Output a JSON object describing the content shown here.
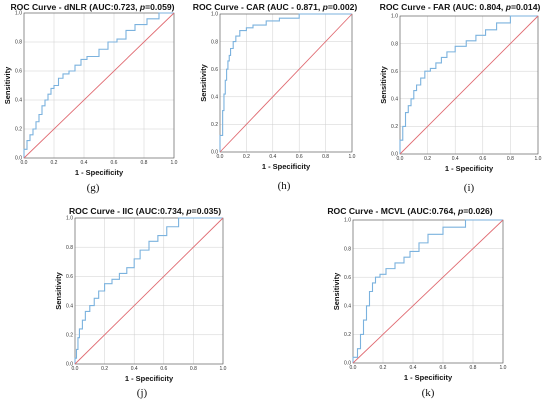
{
  "colors": {
    "roc": "#7bb2de",
    "diagonal": "#e06b72",
    "grid": "#cfcfcf",
    "frame": "#555555"
  },
  "chart_data": [
    {
      "type": "line",
      "title": "ROC Curve - dNLR (AUC:0.723, p=0.059)",
      "title_prefix": "ROC Curve - dNLR (AUC:0.723, ",
      "title_p": "p",
      "title_suffix": "=0.059)",
      "xlabel": "1 - Specificity",
      "ylabel": "Sensitivity",
      "xlim": [
        0,
        1
      ],
      "ylim": [
        0,
        1
      ],
      "xticks": [
        "0.0",
        "0.2",
        "0.4",
        "0.6",
        "0.8",
        "1.0"
      ],
      "yticks": [
        "0.0",
        "0.2",
        "0.4",
        "0.6",
        "0.8",
        "1.0"
      ],
      "grid": true,
      "letter": "(g)",
      "series": [
        {
          "x": [
            0,
            0,
            0.02,
            0.02,
            0.04,
            0.04,
            0.06,
            0.06,
            0.08,
            0.08,
            0.1,
            0.1,
            0.12,
            0.12,
            0.14,
            0.14,
            0.16,
            0.16,
            0.18,
            0.18,
            0.2,
            0.2,
            0.23,
            0.23,
            0.26,
            0.26,
            0.3,
            0.3,
            0.34,
            0.34,
            0.38,
            0.38,
            0.42,
            0.42,
            0.5,
            0.5,
            0.56,
            0.56,
            0.62,
            0.62,
            0.68,
            0.68,
            0.74,
            0.74,
            0.82,
            0.82,
            0.9,
            0.9,
            1.0
          ],
          "y": [
            0,
            0.06,
            0.06,
            0.12,
            0.12,
            0.16,
            0.16,
            0.2,
            0.2,
            0.25,
            0.25,
            0.3,
            0.3,
            0.36,
            0.36,
            0.4,
            0.4,
            0.44,
            0.44,
            0.48,
            0.48,
            0.5,
            0.5,
            0.55,
            0.55,
            0.58,
            0.58,
            0.6,
            0.6,
            0.64,
            0.64,
            0.68,
            0.68,
            0.7,
            0.7,
            0.75,
            0.75,
            0.8,
            0.8,
            0.82,
            0.82,
            0.88,
            0.88,
            0.92,
            0.92,
            0.96,
            0.96,
            1.0,
            1.0
          ]
        },
        {
          "x": [
            0,
            1
          ],
          "y": [
            0,
            1
          ]
        }
      ]
    },
    {
      "type": "line",
      "title": "ROC Curve - CAR (AUC - 0.871, p=0.002)",
      "title_prefix": "ROC Curve - CAR (AUC - 0.871, ",
      "title_p": "p",
      "title_suffix": "=0.002)",
      "xlabel": "1 - Specificity",
      "ylabel": "Sensitivity",
      "xlim": [
        0,
        1
      ],
      "ylim": [
        0,
        1
      ],
      "xticks": [
        "0.0",
        "0.2",
        "0.4",
        "0.6",
        "0.8",
        "1.0"
      ],
      "yticks": [
        "0.0",
        "0.2",
        "0.4",
        "0.6",
        "0.8",
        "1.0"
      ],
      "grid": true,
      "letter": "(h)",
      "series": [
        {
          "x": [
            0,
            0,
            0.02,
            0.02,
            0.03,
            0.03,
            0.04,
            0.04,
            0.05,
            0.05,
            0.06,
            0.06,
            0.07,
            0.07,
            0.08,
            0.08,
            0.1,
            0.1,
            0.12,
            0.12,
            0.15,
            0.15,
            0.2,
            0.2,
            0.25,
            0.25,
            0.35,
            0.35,
            0.45,
            0.45,
            0.6,
            0.6,
            1.0
          ],
          "y": [
            0,
            0.12,
            0.12,
            0.3,
            0.3,
            0.42,
            0.42,
            0.52,
            0.52,
            0.6,
            0.6,
            0.66,
            0.66,
            0.7,
            0.7,
            0.75,
            0.75,
            0.8,
            0.8,
            0.84,
            0.84,
            0.88,
            0.88,
            0.9,
            0.9,
            0.92,
            0.92,
            0.95,
            0.95,
            0.97,
            0.97,
            1.0,
            1.0
          ]
        },
        {
          "x": [
            0,
            1
          ],
          "y": [
            0,
            1
          ]
        }
      ]
    },
    {
      "type": "line",
      "title": "ROC Curve - FAR (AUC: 0.804, p=0.014)",
      "title_prefix": "ROC Curve - FAR (AUC: 0.804, ",
      "title_p": "p",
      "title_suffix": "=0.014)",
      "xlabel": "1 - Specificity",
      "ylabel": "Sensitivity",
      "xlim": [
        0,
        1
      ],
      "ylim": [
        0,
        1
      ],
      "xticks": [
        "0.0",
        "0.2",
        "0.4",
        "0.6",
        "0.8",
        "1.0"
      ],
      "yticks": [
        "0.0",
        "0.2",
        "0.4",
        "0.6",
        "0.8",
        "1.0"
      ],
      "grid": true,
      "letter": "(i)",
      "series": [
        {
          "x": [
            0,
            0,
            0.02,
            0.02,
            0.04,
            0.04,
            0.06,
            0.06,
            0.08,
            0.08,
            0.1,
            0.1,
            0.12,
            0.12,
            0.15,
            0.15,
            0.18,
            0.18,
            0.22,
            0.22,
            0.26,
            0.26,
            0.3,
            0.3,
            0.34,
            0.34,
            0.4,
            0.4,
            0.48,
            0.48,
            0.55,
            0.55,
            0.62,
            0.62,
            0.7,
            0.7,
            0.8,
            0.8,
            1.0
          ],
          "y": [
            0,
            0.1,
            0.1,
            0.2,
            0.2,
            0.3,
            0.3,
            0.35,
            0.35,
            0.4,
            0.4,
            0.46,
            0.46,
            0.5,
            0.5,
            0.55,
            0.55,
            0.6,
            0.6,
            0.62,
            0.62,
            0.66,
            0.66,
            0.7,
            0.7,
            0.74,
            0.74,
            0.78,
            0.78,
            0.82,
            0.82,
            0.86,
            0.86,
            0.9,
            0.9,
            0.95,
            0.95,
            1.0,
            1.0
          ]
        },
        {
          "x": [
            0,
            1
          ],
          "y": [
            0,
            1
          ]
        }
      ]
    },
    {
      "type": "line",
      "title": "ROC Curve - IIC (AUC:0.734, p=0.035)",
      "title_prefix": "ROC Curve - IIC (AUC:0.734, ",
      "title_p": "p",
      "title_suffix": "=0.035)",
      "xlabel": "1 - Specificity",
      "ylabel": "Sensitivity",
      "xlim": [
        0,
        1
      ],
      "ylim": [
        0,
        1
      ],
      "xticks": [
        "0.0",
        "0.2",
        "0.4",
        "0.6",
        "0.8",
        "1.0"
      ],
      "yticks": [
        "0.0",
        "0.2",
        "0.4",
        "0.6",
        "0.8",
        "1.0"
      ],
      "grid": true,
      "letter": "(j)",
      "series": [
        {
          "x": [
            0,
            0,
            0.01,
            0.01,
            0.02,
            0.02,
            0.03,
            0.03,
            0.05,
            0.05,
            0.07,
            0.07,
            0.1,
            0.1,
            0.13,
            0.13,
            0.16,
            0.16,
            0.2,
            0.2,
            0.25,
            0.25,
            0.3,
            0.3,
            0.35,
            0.35,
            0.4,
            0.4,
            0.44,
            0.44,
            0.5,
            0.5,
            0.56,
            0.56,
            0.62,
            0.62,
            0.7,
            0.7,
            1.0
          ],
          "y": [
            0,
            0.04,
            0.04,
            0.1,
            0.1,
            0.18,
            0.18,
            0.24,
            0.24,
            0.3,
            0.3,
            0.36,
            0.36,
            0.4,
            0.4,
            0.45,
            0.45,
            0.5,
            0.5,
            0.55,
            0.55,
            0.58,
            0.58,
            0.62,
            0.62,
            0.66,
            0.66,
            0.72,
            0.72,
            0.78,
            0.78,
            0.84,
            0.84,
            0.88,
            0.88,
            0.94,
            0.94,
            1.0,
            1.0
          ]
        },
        {
          "x": [
            0,
            1
          ],
          "y": [
            0,
            1
          ]
        }
      ]
    },
    {
      "type": "line",
      "title": "ROC Curve - MCVL (AUC:0.764, p=0.026)",
      "title_prefix": "ROC Curve - MCVL (AUC:0.764, ",
      "title_p": "p",
      "title_suffix": "=0.026)",
      "xlabel": "1 - Specificity",
      "ylabel": "Sensitivity",
      "xlim": [
        0,
        1
      ],
      "ylim": [
        0,
        1
      ],
      "xticks": [
        "0.0",
        "0.2",
        "0.4",
        "0.6",
        "0.8",
        "1.0"
      ],
      "yticks": [
        "0.0",
        "0.2",
        "0.4",
        "0.6",
        "0.8",
        "1.0"
      ],
      "grid": true,
      "letter": "(k)",
      "series": [
        {
          "x": [
            0,
            0,
            0.03,
            0.03,
            0.05,
            0.05,
            0.07,
            0.07,
            0.09,
            0.09,
            0.11,
            0.11,
            0.13,
            0.13,
            0.15,
            0.15,
            0.18,
            0.18,
            0.22,
            0.22,
            0.28,
            0.28,
            0.34,
            0.34,
            0.38,
            0.38,
            0.44,
            0.44,
            0.5,
            0.5,
            0.6,
            0.6,
            0.75,
            0.75,
            1.0
          ],
          "y": [
            0,
            0.04,
            0.04,
            0.1,
            0.1,
            0.2,
            0.2,
            0.3,
            0.3,
            0.4,
            0.4,
            0.5,
            0.5,
            0.56,
            0.56,
            0.6,
            0.6,
            0.62,
            0.62,
            0.66,
            0.66,
            0.7,
            0.7,
            0.74,
            0.74,
            0.78,
            0.78,
            0.84,
            0.84,
            0.9,
            0.9,
            0.95,
            0.95,
            1.0,
            1.0
          ]
        },
        {
          "x": [
            0,
            1
          ],
          "y": [
            0,
            1
          ]
        }
      ]
    }
  ]
}
